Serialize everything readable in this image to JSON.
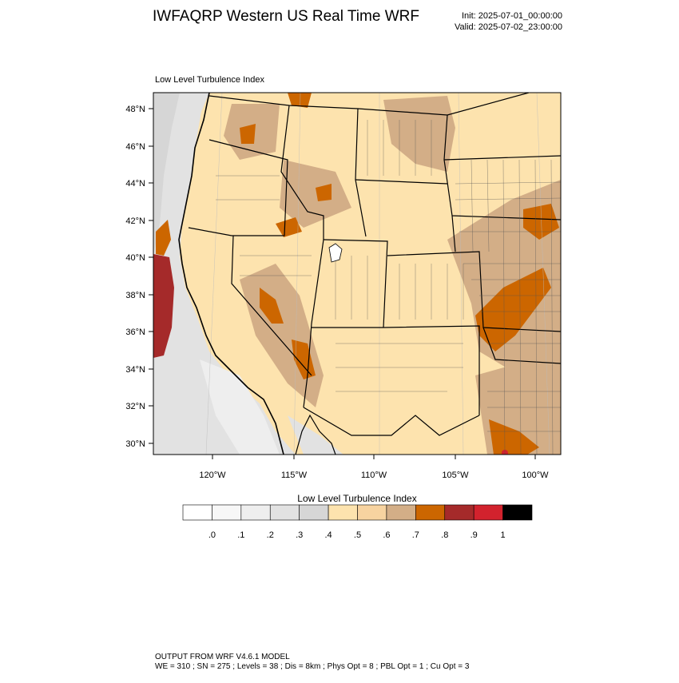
{
  "header": {
    "title": "IWFAQRP Western US Real Time WRF",
    "init": "Init: 2025-07-01_00:00:00",
    "valid": "Valid: 2025-07-02_23:00:00"
  },
  "map": {
    "subtitle": "Low Level Turbulence Index",
    "lat_labels": [
      "48°N",
      "46°N",
      "44°N",
      "42°N",
      "40°N",
      "38°N",
      "36°N",
      "34°N",
      "32°N",
      "30°N"
    ],
    "lon_labels": [
      "120°W",
      "115°W",
      "110°W",
      "105°W",
      "100°W"
    ]
  },
  "colorbar": {
    "title": "Low Level Turbulence Index",
    "colors": [
      "#ffffff",
      "#f7f7f7",
      "#eeeeee",
      "#e2e2e2",
      "#d6d6d6",
      "#fde3ae",
      "#f7d3a0",
      "#d3ae87",
      "#cc6600",
      "#a52a2a",
      "#d2222d",
      "#000000"
    ],
    "tick_labels": [
      ".0",
      ".1",
      ".2",
      ".3",
      ".4",
      ".5",
      ".6",
      ".7",
      ".8",
      ".9",
      "1"
    ]
  },
  "footer": {
    "line1": "OUTPUT FROM WRF V4.6.1 MODEL",
    "line2": "WE = 310 ; SN = 275 ; Levels = 38 ; Dis = 8km ; Phys Opt = 8 ; PBL Opt = 1 ; Cu Opt = 3"
  }
}
